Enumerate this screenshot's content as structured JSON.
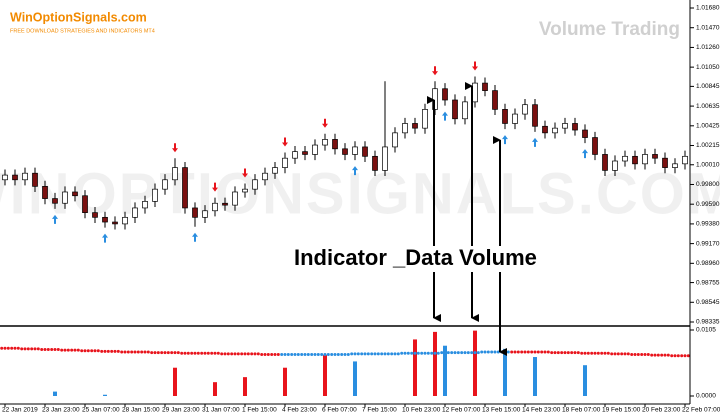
{
  "chart_data": {
    "type": "candlestick",
    "logo": "WinOptionSignals.com",
    "logo_subtitle": "FREE DOWNLOAD STRATEGIES AND INDICATORS MT4",
    "title": "Volume Trading",
    "watermark": "WINOPTIONSIGNALS.COM",
    "annotation": "Indicator _Data Volume",
    "categories": [
      "22 Jan 2019",
      null,
      null,
      null,
      "23 Jan 23:00",
      null,
      null,
      null,
      "25 Jan 07:00",
      null,
      null,
      null,
      "28 Jan 15:00",
      null,
      null,
      null,
      "29 Jan 23:00",
      null,
      null,
      null,
      "31 Jan 07:00",
      null,
      null,
      null,
      "1 Feb 15:00",
      null,
      null,
      null,
      "4 Feb 23:00",
      null,
      null,
      null,
      "6 Feb 07:00",
      null,
      null,
      null,
      "7 Feb 15:00",
      null,
      null,
      null,
      "10 Feb 23:00",
      null,
      null,
      null,
      "12 Feb 07:00",
      null,
      null,
      null,
      "13 Feb 15:00",
      null,
      null,
      null,
      "14 Feb 23:00",
      null,
      null,
      null,
      "18 Feb 07:00",
      null,
      null,
      null,
      "19 Feb 15:00",
      null,
      null,
      null,
      "20 Feb 23:00",
      null,
      null,
      null,
      "22 Feb 07:00"
    ],
    "open": [
      0.9985,
      0.999,
      0.9985,
      0.9992,
      0.9978,
      0.9965,
      0.996,
      0.9972,
      0.9968,
      0.995,
      0.9945,
      0.994,
      0.9938,
      0.9945,
      0.9955,
      0.9962,
      0.9975,
      0.9985,
      0.9998,
      0.9955,
      0.9945,
      0.9952,
      0.996,
      0.9958,
      0.9972,
      0.9975,
      0.9985,
      0.9992,
      0.9998,
      1.0008,
      1.0015,
      1.0012,
      1.0022,
      1.0028,
      1.0018,
      1.0012,
      1.002,
      1.001,
      0.9995,
      1.002,
      1.0035,
      1.0045,
      1.004,
      1.006,
      1.0082,
      1.007,
      1.005,
      1.0068,
      1.0088,
      1.008,
      1.006,
      1.0045,
      1.0055,
      1.0065,
      1.0042,
      1.0035,
      1.004,
      1.0045,
      1.0038,
      1.003,
      1.0012,
      0.9995,
      1.0005,
      1.001,
      1.0002,
      1.0012,
      1.0008,
      0.9998,
      1.0002
    ],
    "high": [
      0.9996,
      0.9996,
      0.9998,
      0.9998,
      0.9984,
      0.9971,
      0.9978,
      0.9978,
      0.9974,
      0.9956,
      0.9951,
      0.9946,
      0.9951,
      0.9961,
      0.9968,
      0.9981,
      0.9991,
      1.0008,
      1.0004,
      0.9961,
      0.9958,
      0.9966,
      0.9966,
      0.9978,
      0.9981,
      0.9991,
      0.9998,
      1.0004,
      1.0014,
      1.0021,
      1.0021,
      1.0028,
      1.0034,
      1.0034,
      1.0024,
      1.0026,
      1.0026,
      1.0016,
      1.009,
      1.0041,
      1.0051,
      1.0051,
      1.0066,
      1.009,
      1.0088,
      1.0076,
      1.0074,
      1.0095,
      1.0094,
      1.0086,
      1.0066,
      1.0061,
      1.0071,
      1.0071,
      1.0048,
      1.0046,
      1.0051,
      1.0051,
      1.0044,
      1.0036,
      1.0018,
      1.0011,
      1.0016,
      1.0016,
      1.0018,
      1.0018,
      1.0014,
      1.0008,
      1.0016
    ],
    "low": [
      0.9979,
      0.9979,
      0.9979,
      0.9972,
      0.9959,
      0.9954,
      0.9954,
      0.9962,
      0.9944,
      0.9939,
      0.9934,
      0.9932,
      0.9932,
      0.9939,
      0.9949,
      0.9956,
      0.9969,
      0.9979,
      0.9949,
      0.9935,
      0.9939,
      0.9946,
      0.9952,
      0.9952,
      0.9966,
      0.9969,
      0.9979,
      0.9986,
      0.9992,
      1.0002,
      1.0006,
      1.0006,
      1.0016,
      1.0012,
      1.0006,
      1.0006,
      1.0004,
      0.9989,
      0.9989,
      1.0014,
      1.0029,
      1.0034,
      1.0034,
      1.0054,
      1.0064,
      1.0044,
      1.0044,
      1.0062,
      1.0074,
      1.0054,
      1.0039,
      1.0039,
      1.0049,
      1.0036,
      1.0029,
      1.0029,
      1.0034,
      1.0032,
      1.0024,
      1.0006,
      0.9989,
      0.9989,
      0.9999,
      0.9996,
      0.9996,
      1.0002,
      0.9992,
      0.9992,
      0.9996
    ],
    "close": [
      0.999,
      0.9985,
      0.9992,
      0.9978,
      0.9965,
      0.996,
      0.9972,
      0.9968,
      0.995,
      0.9945,
      0.994,
      0.9938,
      0.9945,
      0.9955,
      0.9962,
      0.9975,
      0.9985,
      0.9998,
      0.9955,
      0.9945,
      0.9952,
      0.996,
      0.9958,
      0.9972,
      0.9975,
      0.9985,
      0.9992,
      0.9998,
      1.0008,
      1.0015,
      1.0012,
      1.0022,
      1.0028,
      1.0018,
      1.0012,
      1.002,
      1.001,
      0.9995,
      1.002,
      1.0035,
      1.0045,
      1.004,
      1.006,
      1.0082,
      1.007,
      1.005,
      1.0068,
      1.0088,
      1.008,
      1.006,
      1.0045,
      1.0055,
      1.0065,
      1.0042,
      1.0035,
      1.004,
      1.0045,
      1.0038,
      1.003,
      1.0012,
      0.9995,
      1.0005,
      1.001,
      1.0002,
      1.0012,
      1.0008,
      0.9998,
      1.0002,
      1.001
    ],
    "bull_color": "#ffffff",
    "bear_color": "#7a1010",
    "candle_outline": "#000000",
    "signals": [
      null,
      null,
      null,
      null,
      null,
      "buy",
      null,
      null,
      null,
      null,
      "buy",
      null,
      null,
      null,
      null,
      null,
      null,
      "sell",
      null,
      "buy",
      null,
      "sell",
      null,
      null,
      "sell",
      null,
      null,
      null,
      "sell",
      null,
      null,
      null,
      "sell",
      null,
      null,
      "buy",
      null,
      null,
      null,
      null,
      null,
      null,
      null,
      "sell",
      "buy",
      null,
      null,
      "sell",
      null,
      null,
      "buy",
      null,
      null,
      "buy",
      null,
      null,
      null,
      null,
      "buy",
      null,
      null,
      null,
      null,
      null,
      null,
      null,
      null,
      null,
      null
    ],
    "sell_color": "#e8141c",
    "buy_color": "#2a8ee0",
    "ylim": [
      0.98335,
      1.0168
    ],
    "yticks": [
      {
        "value": 1.0168,
        "label": "1.01680"
      },
      {
        "value": 1.0147,
        "label": "1.01470"
      },
      {
        "value": 1.0126,
        "label": "1.01260"
      },
      {
        "value": 1.0105,
        "label": "1.01050"
      },
      {
        "value": 1.00845,
        "label": "1.00845"
      },
      {
        "value": 1.00635,
        "label": "1.00635"
      },
      {
        "value": 1.00425,
        "label": "1.00425"
      },
      {
        "value": 1.00215,
        "label": "1.00215"
      },
      {
        "value": 1.0001,
        "label": "1.00010"
      },
      {
        "value": 0.998,
        "label": "0.99800"
      },
      {
        "value": 0.9959,
        "label": "0.99590"
      },
      {
        "value": 0.9938,
        "label": "0.99380"
      },
      {
        "value": 0.9917,
        "label": "0.99170"
      },
      {
        "value": 0.9896,
        "label": "0.98960"
      },
      {
        "value": 0.98755,
        "label": "0.98755"
      },
      {
        "value": 0.98545,
        "label": "0.98545"
      },
      {
        "value": 0.98335,
        "label": "0.98335"
      }
    ],
    "indicator": {
      "ylim": [
        0,
        0.0105
      ],
      "yticks": [
        {
          "value": 0.0105,
          "label": "0.0105"
        },
        {
          "value": 0,
          "label": "0.0000"
        }
      ],
      "volume": [
        null,
        null,
        null,
        null,
        null,
        0.0007,
        null,
        null,
        null,
        null,
        0.0002,
        null,
        null,
        null,
        null,
        null,
        null,
        0.0045,
        null,
        null,
        null,
        0.0022,
        null,
        null,
        0.003,
        null,
        null,
        null,
        0.0045,
        null,
        null,
        null,
        0.0065,
        null,
        null,
        0.0055,
        null,
        null,
        null,
        null,
        null,
        0.009,
        null,
        0.0102,
        0.008,
        null,
        null,
        0.0104,
        null,
        null,
        0.0075,
        null,
        null,
        0.0062,
        null,
        null,
        null,
        null,
        0.0049,
        null,
        null,
        null,
        null,
        null,
        null,
        null,
        null,
        null,
        null
      ],
      "volume_colors": [
        null,
        null,
        null,
        null,
        null,
        "#2a8ee0",
        null,
        null,
        null,
        null,
        "#2a8ee0",
        null,
        null,
        null,
        null,
        null,
        null,
        "#e8141c",
        null,
        null,
        null,
        "#e8141c",
        null,
        null,
        "#e8141c",
        null,
        null,
        null,
        "#e8141c",
        null,
        null,
        null,
        "#e8141c",
        null,
        null,
        "#2a8ee0",
        null,
        null,
        null,
        null,
        null,
        "#e8141c",
        null,
        "#e8141c",
        "#2a8ee0",
        null,
        null,
        "#e8141c",
        null,
        null,
        "#2a8ee0",
        null,
        null,
        "#2a8ee0",
        null,
        null,
        null,
        null,
        "#2a8ee0",
        null,
        null,
        null,
        null,
        null,
        null,
        null,
        null,
        null,
        null
      ],
      "line": [
        0.0076,
        0.0076,
        0.0075,
        0.0075,
        0.0074,
        0.0074,
        0.0073,
        0.0073,
        0.0072,
        0.0072,
        0.0071,
        0.0071,
        0.007,
        0.007,
        0.007,
        0.0069,
        0.0069,
        0.0069,
        0.0068,
        0.0068,
        0.0068,
        0.0068,
        0.0067,
        0.0067,
        0.0067,
        0.0067,
        0.0066,
        0.0066,
        0.0066,
        0.0066,
        0.0066,
        0.0066,
        0.0066,
        0.0066,
        0.0066,
        0.0067,
        0.0067,
        0.0067,
        0.0067,
        0.0067,
        0.0068,
        0.0068,
        0.0068,
        0.0068,
        0.0069,
        0.0069,
        0.0069,
        0.0069,
        0.007,
        0.007,
        0.007,
        0.007,
        0.007,
        0.007,
        0.007,
        0.0069,
        0.0069,
        0.0069,
        0.0068,
        0.0068,
        0.0068,
        0.0067,
        0.0067,
        0.0066,
        0.0066,
        0.0065,
        0.0065,
        0.0064,
        0.0064
      ],
      "line_colors": [
        "#e8141c",
        "#e8141c",
        "#e8141c",
        "#e8141c",
        "#e8141c",
        "#e8141c",
        "#e8141c",
        "#e8141c",
        "#e8141c",
        "#e8141c",
        "#e8141c",
        "#e8141c",
        "#e8141c",
        "#e8141c",
        "#e8141c",
        "#e8141c",
        "#e8141c",
        "#e8141c",
        "#e8141c",
        "#e8141c",
        "#e8141c",
        "#e8141c",
        "#e8141c",
        "#e8141c",
        "#e8141c",
        "#e8141c",
        "#e8141c",
        "#e8141c",
        "#2a8ee0",
        "#2a8ee0",
        "#2a8ee0",
        "#2a8ee0",
        "#2a8ee0",
        "#2a8ee0",
        "#2a8ee0",
        "#2a8ee0",
        "#2a8ee0",
        "#2a8ee0",
        "#2a8ee0",
        "#2a8ee0",
        "#2a8ee0",
        "#2a8ee0",
        "#2a8ee0",
        "#2a8ee0",
        "#2a8ee0",
        "#2a8ee0",
        "#2a8ee0",
        "#2a8ee0",
        "#2a8ee0",
        "#2a8ee0",
        "#2a8ee0",
        "#e8141c",
        "#e8141c",
        "#e8141c",
        "#e8141c",
        "#e8141c",
        "#e8141c",
        "#e8141c",
        "#e8141c",
        "#e8141c",
        "#e8141c",
        "#e8141c",
        "#e8141c",
        "#e8141c",
        "#e8141c",
        "#e8141c",
        "#e8141c",
        "#e8141c",
        "#e8141c"
      ]
    }
  }
}
